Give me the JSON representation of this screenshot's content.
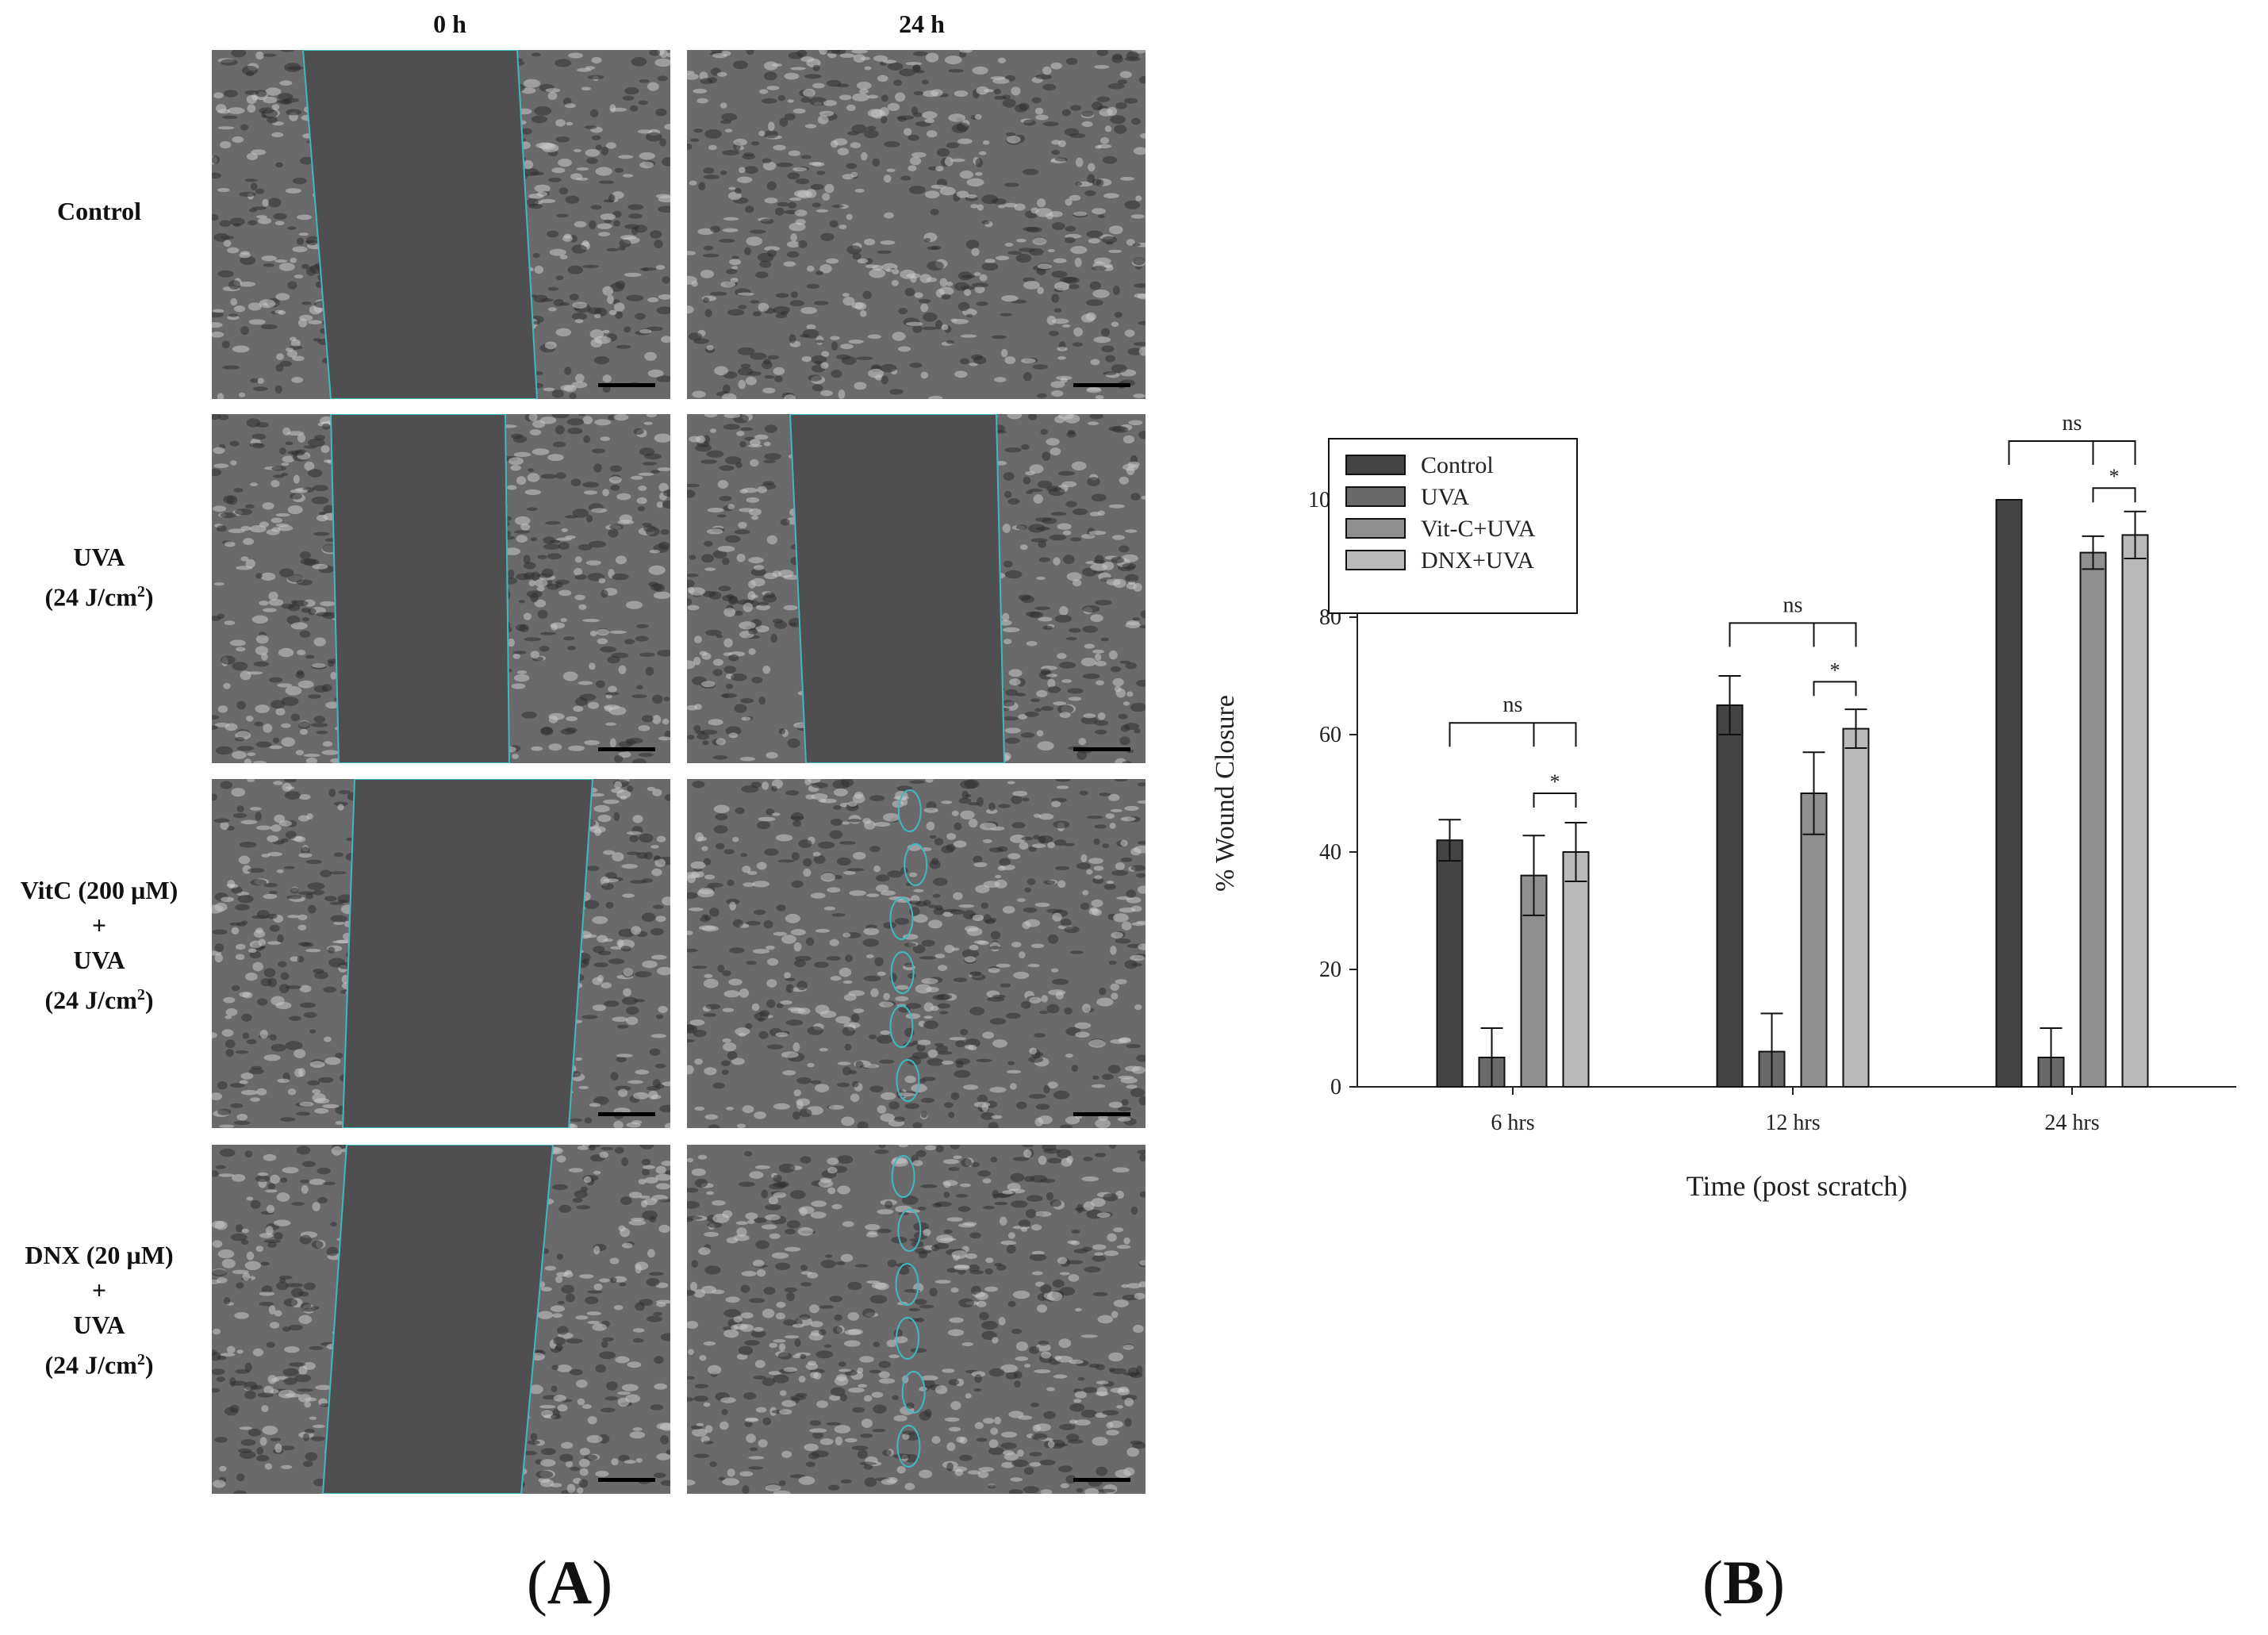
{
  "panelA": {
    "label_open": "(",
    "label_letter": "A",
    "label_close": ")",
    "col_headers": [
      "0 h",
      "24 h"
    ],
    "rows": [
      {
        "line1": "Control",
        "line2": "",
        "line3": "",
        "line4": ""
      },
      {
        "line1": "UVA",
        "line2": "(24 J/cm",
        "sup": "2",
        "line2_end": ")",
        "line3": "",
        "line4": ""
      },
      {
        "line1": "VitC (200 µM)",
        "line2": "+",
        "line3": "UVA",
        "line4": "(24 J/cm",
        "sup": "2",
        "line4_end": ")"
      },
      {
        "line1": "DNX (20 µM)",
        "line2": "+",
        "line3": "UVA",
        "line4": "(24 J/cm",
        "sup": "2",
        "line4_end": ")"
      }
    ]
  },
  "panelB": {
    "label_open": "(",
    "label_letter": "B",
    "label_close": ")"
  },
  "chart_data": {
    "type": "bar",
    "categories": [
      "6 hrs",
      "12 hrs",
      "24 hrs"
    ],
    "xlabel": "Time (post scratch)",
    "ylabel": "% Wound Closure",
    "ylim": [
      0,
      110
    ],
    "yticks": [
      0,
      20,
      40,
      60,
      80,
      100
    ],
    "legend_position": "top-left",
    "series": [
      {
        "name": "Control",
        "color": "#444444",
        "values": [
          42,
          65,
          100
        ],
        "errors": [
          3.5,
          5,
          0
        ]
      },
      {
        "name": "UVA",
        "color": "#6a6a6a",
        "values": [
          5,
          6,
          5
        ],
        "errors": [
          5,
          6.5,
          5
        ]
      },
      {
        "name": "Vit-C+UVA",
        "color": "#8f8f8f",
        "values": [
          36,
          50,
          91
        ],
        "errors": [
          6.8,
          7,
          2.8
        ]
      },
      {
        "name": "DNX+UVA",
        "color": "#b9b9b9",
        "values": [
          40,
          61,
          94
        ],
        "errors": [
          5,
          3.3,
          4
        ]
      }
    ],
    "annotations": [
      {
        "group": 0,
        "text": "ns",
        "from_series": 0,
        "to_series": 3,
        "level": 62
      },
      {
        "group": 0,
        "text": "*",
        "from_series": 2,
        "to_series": 3,
        "level": 50
      },
      {
        "group": 1,
        "text": "ns",
        "from_series": 0,
        "to_series": 3,
        "level": 79
      },
      {
        "group": 1,
        "text": "*",
        "from_series": 2,
        "to_series": 3,
        "level": 69
      },
      {
        "group": 2,
        "text": "ns",
        "from_series": 0,
        "to_series": 3,
        "level": 110
      },
      {
        "group": 2,
        "text": "*",
        "from_series": 2,
        "to_series": 3,
        "level": 102
      }
    ]
  }
}
